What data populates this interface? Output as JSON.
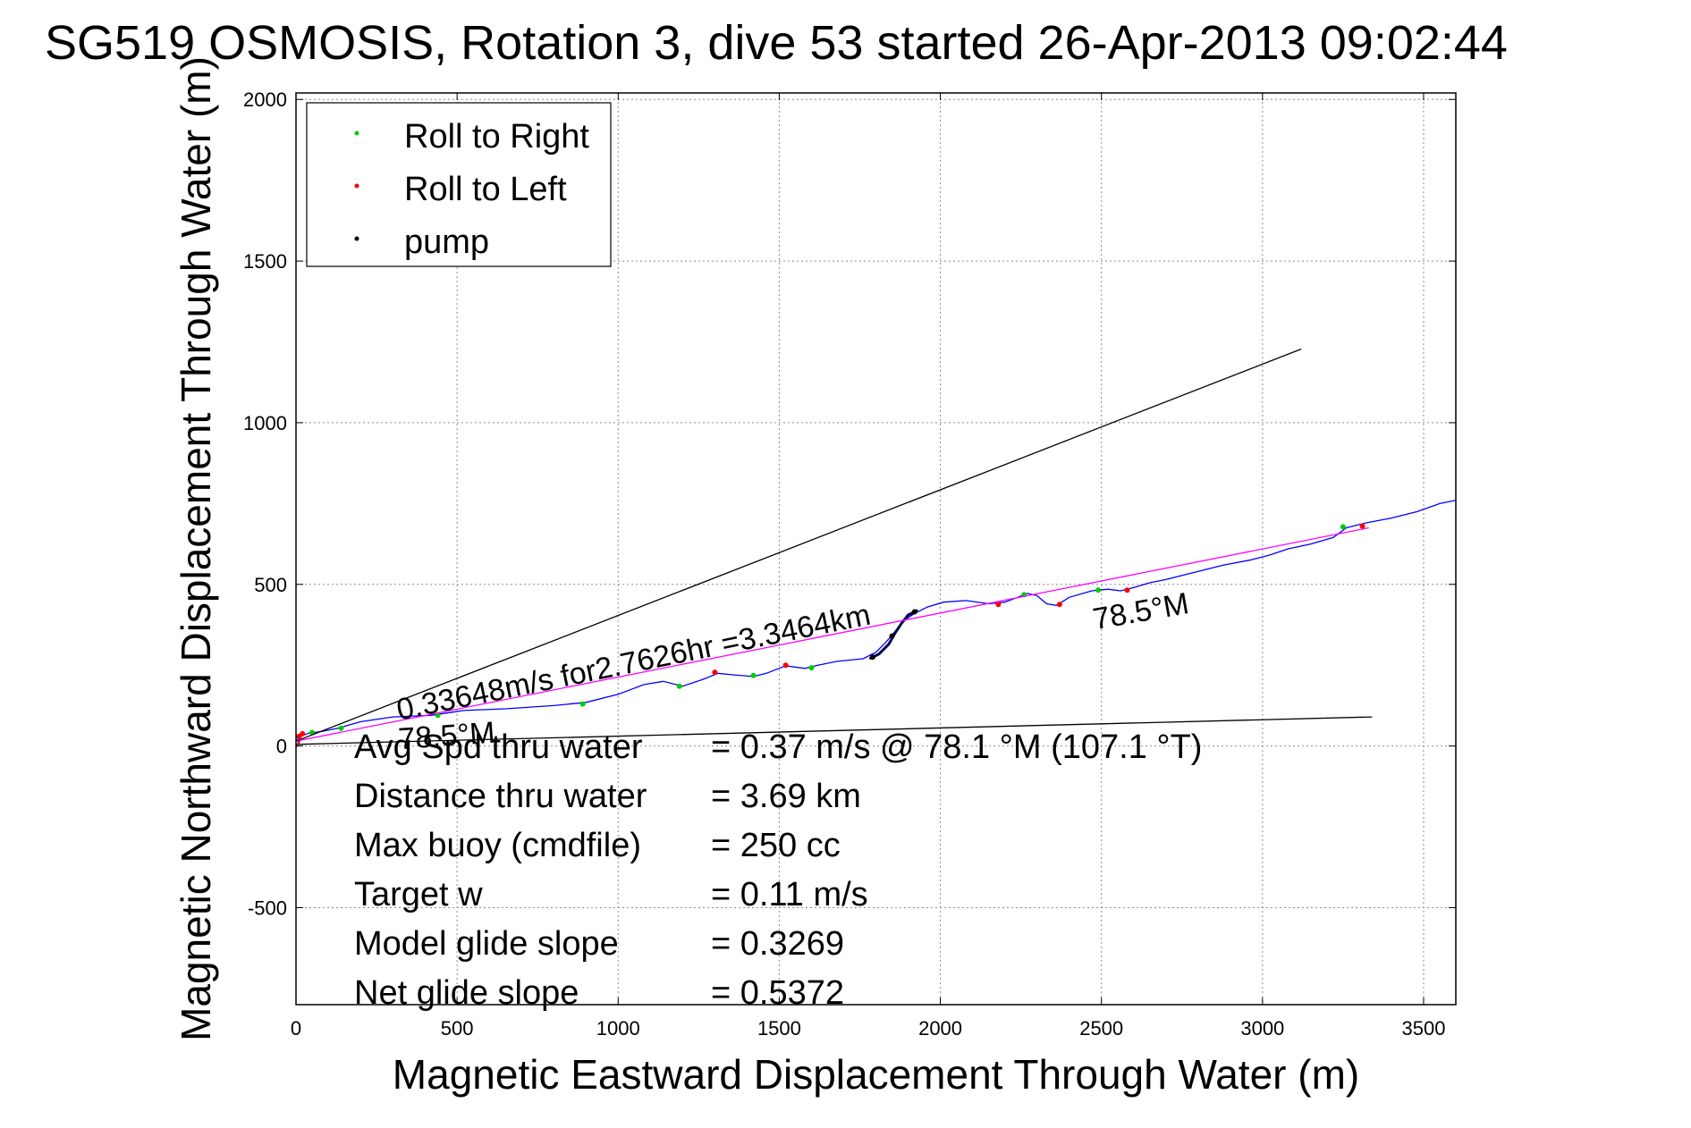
{
  "chart_data": {
    "type": "line",
    "title": "SG519 OSMOSIS, Rotation 3, dive 53 started 26-Apr-2013 09:02:44",
    "xlabel": "Magnetic Eastward Displacement Through Water (m)",
    "ylabel": "Magnetic Northward Displacement Through Water (m)",
    "xlim": [
      0,
      3600
    ],
    "ylim": [
      -800,
      2020
    ],
    "xticks": [
      0,
      500,
      1000,
      1500,
      2000,
      2500,
      3000,
      3500
    ],
    "yticks": [
      -500,
      0,
      500,
      1000,
      1500,
      2000
    ],
    "xtick_labels": [
      "0",
      "500",
      "1000",
      "1500",
      "2000",
      "2500",
      "3000",
      "3500"
    ],
    "ytick_labels": [
      "-500",
      "0",
      "500",
      "1000",
      "1500",
      "2000"
    ],
    "grid": true,
    "legend": {
      "position": "top-left",
      "entries": [
        {
          "label": "Roll to Right",
          "color": "#00cc00"
        },
        {
          "label": "Roll to Left",
          "color": "#ff0000"
        },
        {
          "label": "pump",
          "color": "#000000"
        }
      ]
    },
    "series": [
      {
        "name": "track",
        "color": "#0000ff",
        "points": [
          [
            -10,
            5
          ],
          [
            0,
            15
          ],
          [
            15,
            30
          ],
          [
            40,
            40
          ],
          [
            80,
            45
          ],
          [
            130,
            55
          ],
          [
            200,
            75
          ],
          [
            300,
            90
          ],
          [
            420,
            95
          ],
          [
            520,
            110
          ],
          [
            650,
            115
          ],
          [
            800,
            125
          ],
          [
            900,
            135
          ],
          [
            1000,
            160
          ],
          [
            1080,
            190
          ],
          [
            1140,
            200
          ],
          [
            1200,
            185
          ],
          [
            1260,
            205
          ],
          [
            1310,
            225
          ],
          [
            1360,
            220
          ],
          [
            1420,
            215
          ],
          [
            1460,
            225
          ],
          [
            1520,
            248
          ],
          [
            1580,
            240
          ],
          [
            1620,
            250
          ],
          [
            1680,
            262
          ],
          [
            1760,
            270
          ],
          [
            1800,
            290
          ],
          [
            1830,
            320
          ],
          [
            1860,
            355
          ],
          [
            1890,
            390
          ],
          [
            1920,
            410
          ],
          [
            1960,
            430
          ],
          [
            2010,
            445
          ],
          [
            2080,
            450
          ],
          [
            2150,
            440
          ],
          [
            2200,
            445
          ],
          [
            2240,
            460
          ],
          [
            2270,
            472
          ],
          [
            2300,
            465
          ],
          [
            2330,
            440
          ],
          [
            2360,
            435
          ],
          [
            2400,
            460
          ],
          [
            2470,
            480
          ],
          [
            2520,
            485
          ],
          [
            2560,
            480
          ],
          [
            2600,
            490
          ],
          [
            2650,
            505
          ],
          [
            2700,
            515
          ],
          [
            2760,
            530
          ],
          [
            2820,
            545
          ],
          [
            2880,
            560
          ],
          [
            2960,
            575
          ],
          [
            3020,
            590
          ],
          [
            3080,
            610
          ],
          [
            3150,
            625
          ],
          [
            3220,
            645
          ],
          [
            3260,
            675
          ],
          [
            3320,
            690
          ],
          [
            3400,
            705
          ],
          [
            3480,
            725
          ],
          [
            3550,
            750
          ],
          [
            3600,
            760
          ]
        ]
      },
      {
        "name": "pump segment",
        "color": "#00004a",
        "points": [
          [
            1780,
            270
          ],
          [
            1810,
            285
          ],
          [
            1840,
            315
          ],
          [
            1860,
            350
          ],
          [
            1880,
            380
          ],
          [
            1900,
            405
          ],
          [
            1930,
            420
          ]
        ]
      },
      {
        "name": "roll to right",
        "color": "#00cc00",
        "marker_only": true,
        "points": [
          [
            50,
            42
          ],
          [
            140,
            55
          ],
          [
            440,
            95
          ],
          [
            890,
            130
          ],
          [
            1190,
            185
          ],
          [
            1420,
            218
          ],
          [
            1600,
            242
          ],
          [
            2260,
            468
          ],
          [
            2490,
            482
          ],
          [
            3250,
            678
          ]
        ]
      },
      {
        "name": "roll to left",
        "color": "#ff0000",
        "marker_only": true,
        "points": [
          [
            10,
            30
          ],
          [
            20,
            38
          ],
          [
            1300,
            228
          ],
          [
            1520,
            250
          ],
          [
            2180,
            438
          ],
          [
            2370,
            438
          ],
          [
            2580,
            482
          ],
          [
            3310,
            680
          ]
        ]
      },
      {
        "name": "pump",
        "color": "#000000",
        "marker_only": true,
        "points": [
          [
            1790,
            275
          ],
          [
            1850,
            340
          ],
          [
            1920,
            415
          ]
        ]
      },
      {
        "name": "net course",
        "color": "#ff00ff",
        "points": [
          [
            0,
            15
          ],
          [
            3330,
            675
          ]
        ]
      },
      {
        "name": "heading limit upper",
        "color": "#000000",
        "points": [
          [
            0,
            15
          ],
          [
            3120,
            1228
          ]
        ]
      },
      {
        "name": "heading limit lower",
        "color": "#000000",
        "points": [
          [
            0,
            5
          ],
          [
            3340,
            90
          ]
        ]
      },
      {
        "name": "start loop",
        "color": "#c00060",
        "points": [
          [
            0,
            30
          ],
          [
            -8,
            22
          ],
          [
            -10,
            10
          ],
          [
            -5,
            0
          ],
          [
            5,
            2
          ],
          [
            10,
            15
          ],
          [
            5,
            28
          ],
          [
            0,
            30
          ]
        ]
      }
    ],
    "annotations": [
      {
        "text": "0.33648m/s for2.7626hr =3.3464km",
        "x": 320,
        "y": 80,
        "rotation_deg": -11.5
      },
      {
        "text": "78.5°M",
        "x": 2480,
        "y": 360,
        "rotation_deg": -10
      },
      {
        "text": "78.5°M",
        "x": 320,
        "y": -10,
        "rotation_deg": -4
      }
    ],
    "stats": [
      {
        "label": "Avg Spd thru water",
        "value": "=  0.37 m/s @  78.1 °M (107.1 °T)"
      },
      {
        "label": "Distance thru water",
        "value": "=  3.69 km"
      },
      {
        "label": "Max buoy (cmdfile)",
        "value": "= 250 cc"
      },
      {
        "label": "Target w",
        "value": "= 0.11 m/s"
      },
      {
        "label": "Model glide slope",
        "value": "= 0.3269"
      },
      {
        "label": "Net glide slope",
        "value": "= 0.5372"
      }
    ]
  }
}
